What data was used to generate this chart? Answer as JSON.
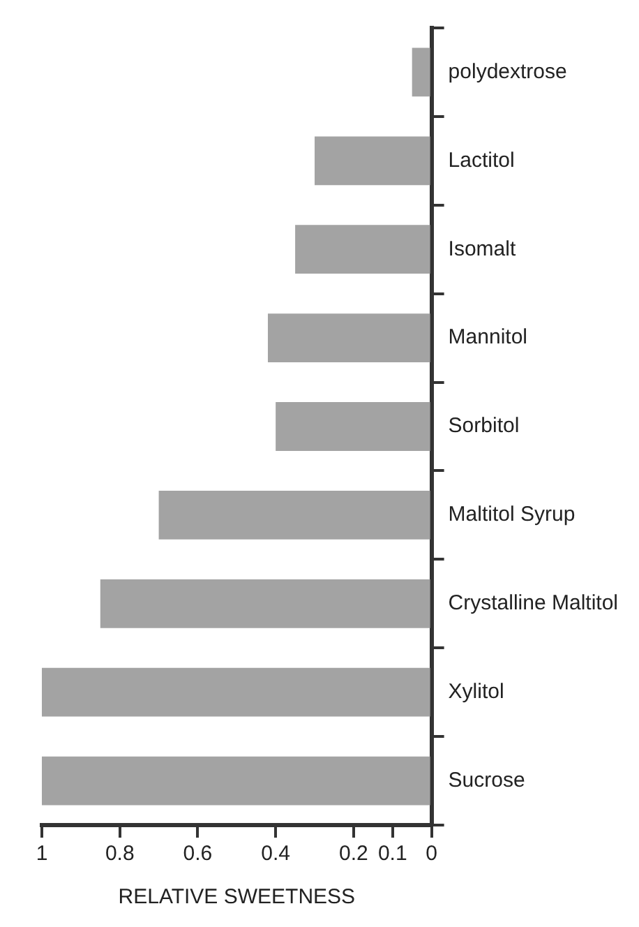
{
  "chart_data": {
    "type": "bar",
    "orientation": "horizontal",
    "xlabel": "RELATIVE SWEETNESS",
    "categories": [
      "polydextrose",
      "Lactitol",
      "Isomalt",
      "Mannitol",
      "Sorbitol",
      "Maltitol Syrup",
      "Crystalline Maltitol",
      "Xylitol",
      "Sucrose"
    ],
    "values": [
      0.05,
      0.3,
      0.35,
      0.42,
      0.4,
      0.7,
      0.85,
      1,
      1
    ],
    "color": "#a3a3a3",
    "xlim": [
      1,
      0
    ],
    "xticks": [
      1,
      0.8,
      0.6,
      0.4,
      0.2,
      0.1,
      0
    ],
    "grid": false,
    "legend": false
  }
}
